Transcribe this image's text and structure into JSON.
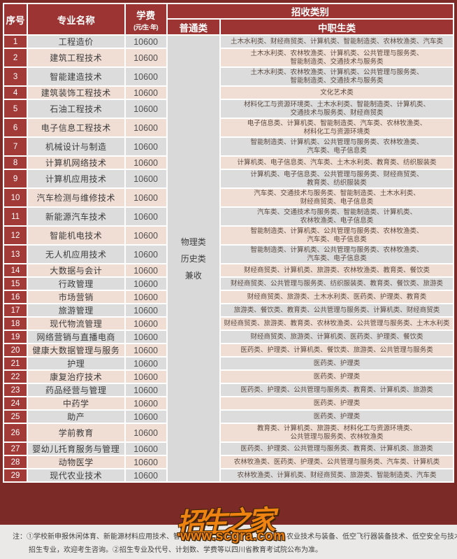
{
  "header": {
    "col_no": "序号",
    "col_major": "专业名称",
    "col_fee": "学费",
    "col_fee_unit": "(元/生·年)",
    "col_admission": "招收类别",
    "col_general": "普通类",
    "col_vocational": "中职生类"
  },
  "general_labels": [
    "物理类",
    "历史类",
    "兼收"
  ],
  "rows": [
    {
      "no": "1",
      "major": "工程造价",
      "fee": "10600",
      "categories": "土木水利类、财经商贸类、计算机类、智能制造类、农林牧渔类、汽车类"
    },
    {
      "no": "2",
      "major": "建筑工程技术",
      "fee": "10600",
      "categories": "土木水利类、农林牧渔类、计算机类、公共管理与服务类、\n智能制造类、交通技术与服务类"
    },
    {
      "no": "3",
      "major": "智能建造技术",
      "fee": "10600",
      "categories": "土木水利类、农林牧渔类、计算机类、公共管理与服务类、\n智能制造类、交通技术与服务类"
    },
    {
      "no": "4",
      "major": "建筑装饰工程技术",
      "fee": "10600",
      "categories": "文化艺术类"
    },
    {
      "no": "5",
      "major": "石油工程技术",
      "fee": "10600",
      "categories": "材料化工与资源环境类、土木水利类、智能制造类、计算机类、\n交通技术与服务类、财经商贸类"
    },
    {
      "no": "6",
      "major": "电子信息工程技术",
      "fee": "10600",
      "categories": "电子信息类、计算机类、智能制造类、汽车类、农林牧渔类、\n材料化工与资源环境类"
    },
    {
      "no": "7",
      "major": "机械设计与制造",
      "fee": "10600",
      "categories": "智能制造类、计算机类、公共管理与服务类、农林牧渔类、\n汽车类、电子信息类"
    },
    {
      "no": "8",
      "major": "计算机网络技术",
      "fee": "10600",
      "categories": "计算机类、电子信息类、汽车类、土木水利类、教育类、纺织服装类"
    },
    {
      "no": "9",
      "major": "计算机应用技术",
      "fee": "10600",
      "categories": "计算机类、电子信息类、公共管理与服务类、财经商贸类、\n教育类、纺织服装类"
    },
    {
      "no": "10",
      "major": "汽车检测与维修技术",
      "fee": "10600",
      "categories": "汽车类、交通技术与服务类、智能制造类、土木水利类、\n财经商贸类、电子信息类"
    },
    {
      "no": "11",
      "major": "新能源汽车技术",
      "fee": "10600",
      "categories": "汽车类、交通技术与服务类、智能制造类、计算机类、\n农林牧渔类、电子信息类"
    },
    {
      "no": "12",
      "major": "智能机电技术",
      "fee": "10600",
      "categories": "智能制造类、计算机类、公共管理与服务类、农林牧渔类、\n汽车类、电子信息类"
    },
    {
      "no": "13",
      "major": "无人机应用技术",
      "fee": "10600",
      "categories": "智能制造类、计算机类、公共管理与服务类、农林牧渔类、\n汽车类、电子信息类"
    },
    {
      "no": "14",
      "major": "大数据与会计",
      "fee": "10600",
      "categories": "财经商贸类、计算机类、旅游类、农林牧渔类、教育类、餐饮类"
    },
    {
      "no": "15",
      "major": "行政管理",
      "fee": "10600",
      "categories": "财经商贸类、公共管理与服务类、纺织服装类、教育类、餐饮类、旅游类"
    },
    {
      "no": "16",
      "major": "市场营销",
      "fee": "10600",
      "categories": "财经商贸类、旅游类、土木水利类、医药类、护理类、教育类"
    },
    {
      "no": "17",
      "major": "旅游管理",
      "fee": "10600",
      "categories": "旅游类、餐饮类、教育类、公共管理与服务类、计算机类、财经商贸类"
    },
    {
      "no": "18",
      "major": "现代物流管理",
      "fee": "10600",
      "categories": "财经商贸类、旅游类、教育类、农林牧渔类、公共管理与服务类、土木水利类"
    },
    {
      "no": "19",
      "major": "网络营销与直播电商",
      "fee": "10600",
      "categories": "财经商贸类、旅游类、计算机类、医药类、护理类、餐饮类"
    },
    {
      "no": "20",
      "major": "健康大数据管理与服务",
      "fee": "10600",
      "categories": "医药类、护理类、计算机类、餐饮类、旅游类、公共管理与服务类"
    },
    {
      "no": "21",
      "major": "护理",
      "fee": "10600",
      "categories": "医药类、护理类"
    },
    {
      "no": "22",
      "major": "康复治疗技术",
      "fee": "10600",
      "categories": "医药类、护理类"
    },
    {
      "no": "23",
      "major": "药品经营与管理",
      "fee": "10600",
      "categories": "医药类、护理类、公共管理与服务类、教育类、计算机类、旅游类"
    },
    {
      "no": "24",
      "major": "中药学",
      "fee": "10600",
      "categories": "医药类、护理类"
    },
    {
      "no": "25",
      "major": "助产",
      "fee": "10600",
      "categories": "医药类、护理类"
    },
    {
      "no": "26",
      "major": "学前教育",
      "fee": "10600",
      "categories": "教育类、计算机类、旅游类、材料化工与资源环境类、\n公共管理与服务类、农林牧渔类"
    },
    {
      "no": "27",
      "major": "婴幼儿托育服务与管理",
      "fee": "10600",
      "categories": "医药类、护理类、公共管理与服务类、教育类、计算机类、旅游类"
    },
    {
      "no": "28",
      "major": "动物医学",
      "fee": "10600",
      "categories": "农林牧渔类、医药类、护理类、公共管理与服务类、汽车类、计算机类"
    },
    {
      "no": "29",
      "major": "现代农业技术",
      "fee": "10600",
      "categories": "农林牧渔类、计算机类、财经商贸类、旅游类、智能制造类、汽车类"
    }
  ],
  "notes": {
    "line1_left": "注：①学校新申报休闲体育、新能源材料应用技术、智能制造装",
    "line1_right": "农业技术与装备、低空飞行器装备技术、低空安全与技术七个拟",
    "line2": "招生专业，欢迎考生咨询。②招生专业及代号、计划数、学费等以四川省教育考试院公布为准。"
  },
  "watermark": {
    "text": "招生之家",
    "url": "www.scgra.com",
    "color": "#ef8312"
  },
  "colors": {
    "header_red": "#9c3433",
    "index_red": "#a23a38",
    "row_gray": "#dcdcdc",
    "row_pink": "#f0ddd4",
    "general_col_gray": "#d9d9d9",
    "frame_maroon": "#7b2a27"
  }
}
